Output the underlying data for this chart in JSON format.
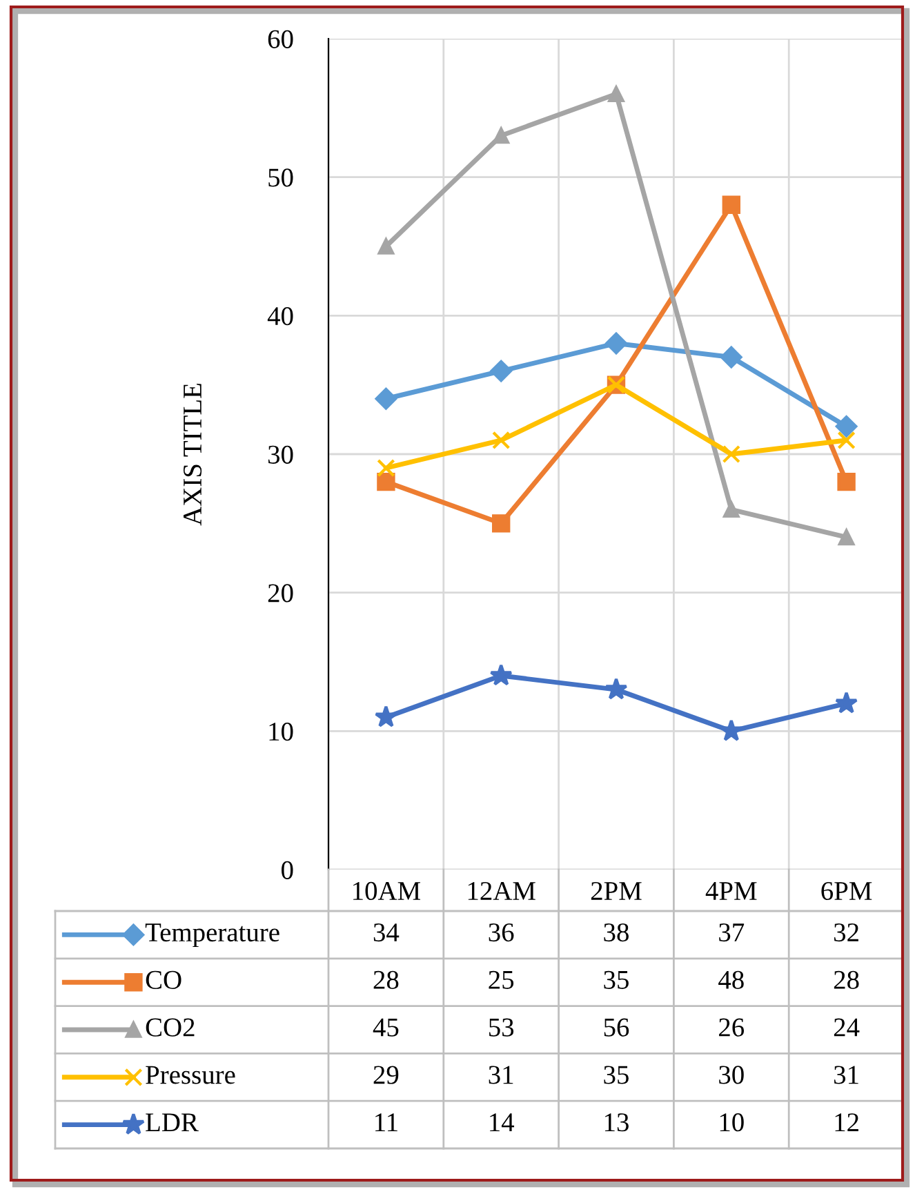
{
  "chart_data": {
    "type": "line",
    "ylabel": "AXIS TITLE",
    "categories": [
      "10AM",
      "12AM",
      "2PM",
      "4PM",
      "6PM"
    ],
    "series": [
      {
        "name": "Temperature",
        "color": "#5b9bd5",
        "marker": "diamond",
        "values": [
          34,
          36,
          38,
          37,
          32
        ]
      },
      {
        "name": "CO",
        "color": "#ed7d31",
        "marker": "square",
        "values": [
          28,
          25,
          35,
          48,
          28
        ]
      },
      {
        "name": "CO2",
        "color": "#a5a5a5",
        "marker": "triangle",
        "values": [
          45,
          53,
          56,
          26,
          24
        ]
      },
      {
        "name": "Pressure",
        "color": "#ffc000",
        "marker": "cross",
        "values": [
          29,
          31,
          35,
          30,
          31
        ]
      },
      {
        "name": "LDR",
        "color": "#4472c4",
        "marker": "star",
        "values": [
          11,
          14,
          13,
          10,
          12
        ]
      }
    ],
    "ylim": [
      0,
      60
    ],
    "yticks": [
      0,
      10,
      20,
      30,
      40,
      50,
      60
    ],
    "grid": true,
    "legend": "bottom",
    "data_labels": true,
    "line_style": "solid"
  }
}
